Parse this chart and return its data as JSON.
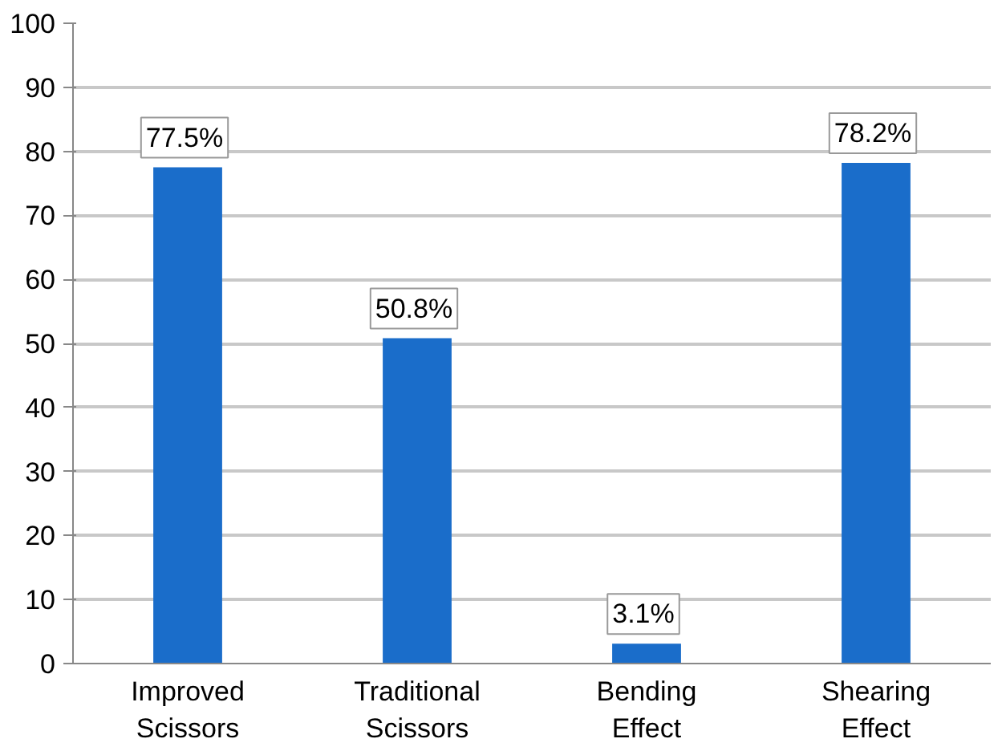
{
  "chart_data": {
    "type": "bar",
    "categories": [
      "Improved Scissors",
      "Traditional Scissors",
      "Bending Effect",
      "Shearing Effect"
    ],
    "values": [
      77.5,
      50.8,
      3.1,
      78.2
    ],
    "value_labels": [
      "77.5%",
      "50.8%",
      "3.1%",
      "78.2%"
    ],
    "color": "#1a6dca",
    "ylim": [
      0,
      100
    ],
    "yticks": [
      0,
      10,
      20,
      30,
      40,
      50,
      60,
      70,
      80,
      90,
      100
    ],
    "grid": "y"
  }
}
